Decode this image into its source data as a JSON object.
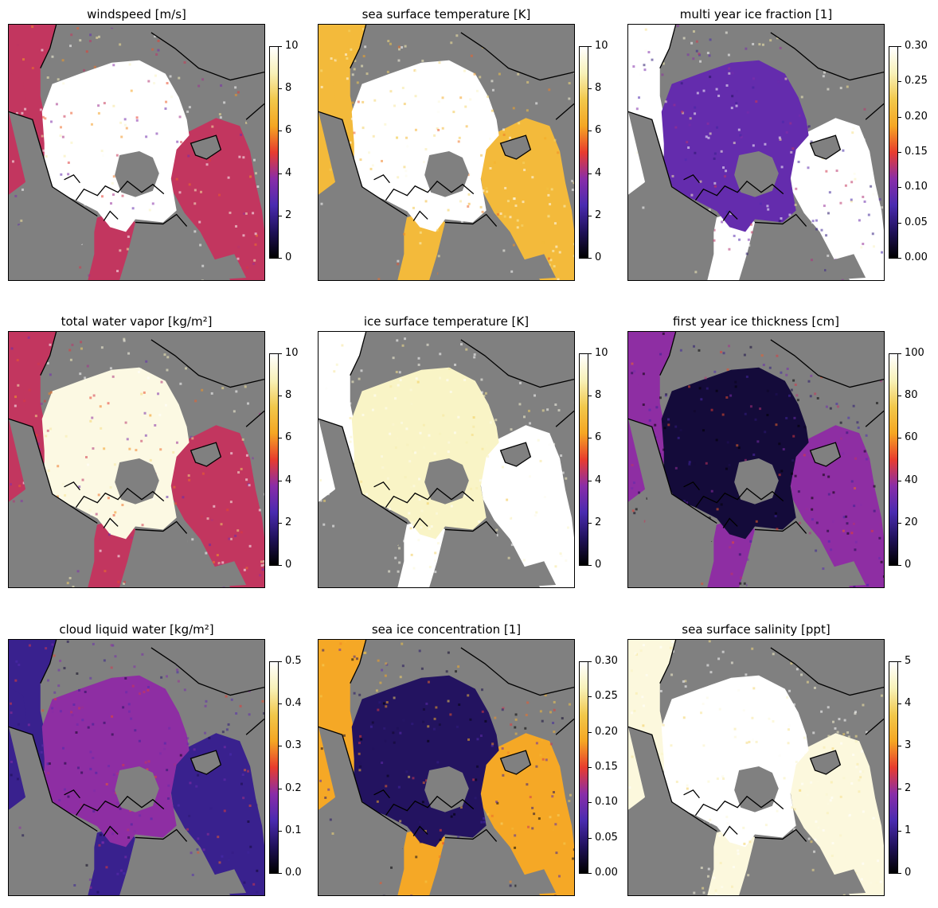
{
  "colors": {
    "land": "#808080",
    "colormap": [
      "#000000",
      "#20115a",
      "#4a2bb0",
      "#8a2da8",
      "#e83c2e",
      "#f5a623",
      "#f2c84b",
      "#f8f1b8",
      "#ffffff"
    ]
  },
  "chart_data": [
    {
      "type": "heatmap",
      "title": "windspeed [m/s]",
      "ticks": [
        "0",
        "2",
        "4",
        "6",
        "8",
        "10"
      ],
      "vmin": 0,
      "vmax": 10,
      "ice_value": 10,
      "ocean_value": 4.5,
      "nan_over_pole": true
    },
    {
      "type": "heatmap",
      "title": "sea surface temperature [K]",
      "ticks": [
        "0",
        "2",
        "4",
        "6",
        "8",
        "10"
      ],
      "vmin": 0,
      "vmax": 10,
      "ice_value": 10,
      "ocean_value": 7,
      "nan_over_pole": true
    },
    {
      "type": "heatmap",
      "title": "multi year ice fraction [1]",
      "ticks": [
        "0.00",
        "0.05",
        "0.10",
        "0.15",
        "0.20",
        "0.25",
        "0.30"
      ],
      "vmin": 0,
      "vmax": 0.3,
      "ice_value": 0.09,
      "ocean_value": 0.3,
      "nan_over_pole": true
    },
    {
      "type": "heatmap",
      "title": "total water vapor [kg/m²]",
      "ticks": [
        "0",
        "2",
        "4",
        "6",
        "8",
        "10"
      ],
      "vmin": 0,
      "vmax": 10,
      "ice_value": 9.5,
      "ocean_value": 4.5,
      "nan_over_pole": true
    },
    {
      "type": "heatmap",
      "title": "ice surface temperature [K]",
      "ticks": [
        "0",
        "2",
        "4",
        "6",
        "8",
        "10"
      ],
      "vmin": 0,
      "vmax": 10,
      "ice_value": 9,
      "ocean_value": 10,
      "nan_over_pole": true
    },
    {
      "type": "heatmap",
      "title": "first year ice thickness [cm]",
      "ticks": [
        "0",
        "20",
        "40",
        "60",
        "80",
        "100"
      ],
      "vmin": 0,
      "vmax": 100,
      "ice_value": 8,
      "ocean_value": 38,
      "nan_over_pole": true
    },
    {
      "type": "heatmap",
      "title": "cloud liquid water [kg/m²]",
      "ticks": [
        "0.0",
        "0.1",
        "0.2",
        "0.3",
        "0.4",
        "0.5"
      ],
      "vmin": 0,
      "vmax": 0.5,
      "ice_value": 0.19,
      "ocean_value": 0.1,
      "nan_over_pole": true
    },
    {
      "type": "heatmap",
      "title": "sea ice concentration [1]",
      "ticks": [
        "0.00",
        "0.05",
        "0.10",
        "0.15",
        "0.20",
        "0.25",
        "0.30"
      ],
      "vmin": 0,
      "vmax": 0.3,
      "ice_value": 0.04,
      "ocean_value": 0.19,
      "nan_over_pole": true
    },
    {
      "type": "heatmap",
      "title": "sea surface salinity [ppt]",
      "ticks": [
        "0",
        "1",
        "2",
        "3",
        "4",
        "5"
      ],
      "vmin": 0,
      "vmax": 5,
      "ice_value": 5,
      "ocean_value": 4.7,
      "nan_over_pole": true
    }
  ]
}
